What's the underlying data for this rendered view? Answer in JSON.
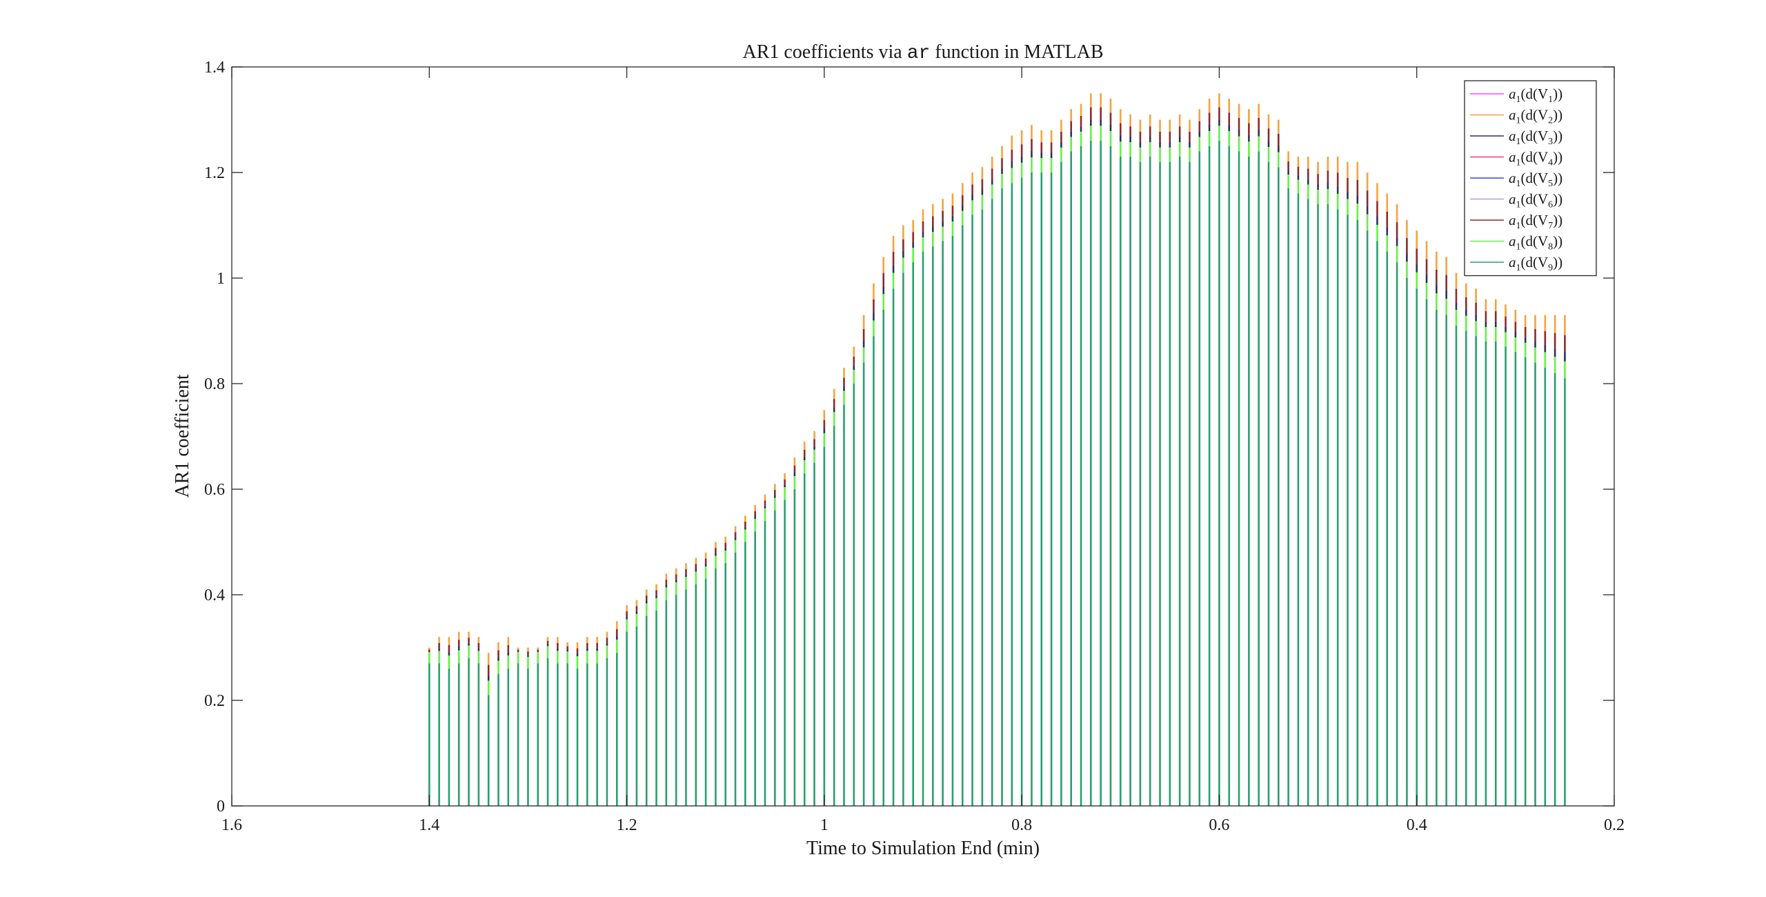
{
  "chart_data": {
    "type": "bar",
    "title": {
      "prefix": "AR1 coefficients via ",
      "code": "ar",
      "suffix": " function in MATLAB"
    },
    "xlabel": "Time to Simulation End (min)",
    "ylabel": "AR1 coefficient",
    "xlim": [
      1.6,
      0.2
    ],
    "x_reversed": true,
    "ylim": [
      0,
      1.4
    ],
    "xticks": [
      "1.6",
      "1.4",
      "1.2",
      "1",
      "0.8",
      "0.6",
      "0.4",
      "0.2"
    ],
    "yticks": [
      "0",
      "0.2",
      "0.4",
      "0.6",
      "0.8",
      "1",
      "1.2",
      "1.4"
    ],
    "grid": false,
    "legend_position": "top-right",
    "series": [
      {
        "name": "a1(d(V1))",
        "label_parts": [
          "a",
          "1",
          "(d(V",
          "1",
          "))"
        ],
        "color": "#ff40ff"
      },
      {
        "name": "a1(d(V2))",
        "label_parts": [
          "a",
          "1",
          "(d(V",
          "2",
          "))"
        ],
        "color": "#f5a33d"
      },
      {
        "name": "a1(d(V3))",
        "label_parts": [
          "a",
          "1",
          "(d(V",
          "3",
          "))"
        ],
        "color": "#30305a"
      },
      {
        "name": "a1(d(V4))",
        "label_parts": [
          "a",
          "1",
          "(d(V",
          "4",
          "))"
        ],
        "color": "#ff3377"
      },
      {
        "name": "a1(d(V5))",
        "label_parts": [
          "a",
          "1",
          "(d(V",
          "5",
          "))"
        ],
        "color": "#3344ee"
      },
      {
        "name": "a1(d(V6))",
        "label_parts": [
          "a",
          "1",
          "(d(V",
          "6",
          "))"
        ],
        "color": "#b49cf0"
      },
      {
        "name": "a1(d(V7))",
        "label_parts": [
          "a",
          "1",
          "(d(V",
          "7",
          "))"
        ],
        "color": "#8c2a2a"
      },
      {
        "name": "a1(d(V8))",
        "label_parts": [
          "a",
          "1",
          "(d(V",
          "8",
          "))"
        ],
        "color": "#66f048"
      },
      {
        "name": "a1(d(V9))",
        "label_parts": [
          "a",
          "1",
          "(d(V",
          "9",
          "))"
        ],
        "color": "#2a9e6e"
      }
    ],
    "x_start": 1.4,
    "x_step": 0.01,
    "envelope_top": [
      0.3,
      0.32,
      0.32,
      0.33,
      0.33,
      0.32,
      0.29,
      0.31,
      0.32,
      0.3,
      0.3,
      0.3,
      0.32,
      0.32,
      0.31,
      0.31,
      0.32,
      0.32,
      0.33,
      0.35,
      0.38,
      0.39,
      0.41,
      0.42,
      0.44,
      0.45,
      0.46,
      0.47,
      0.48,
      0.5,
      0.51,
      0.53,
      0.55,
      0.57,
      0.59,
      0.61,
      0.63,
      0.66,
      0.69,
      0.71,
      0.75,
      0.79,
      0.83,
      0.87,
      0.93,
      0.99,
      1.04,
      1.08,
      1.1,
      1.11,
      1.13,
      1.14,
      1.15,
      1.16,
      1.18,
      1.2,
      1.21,
      1.23,
      1.25,
      1.27,
      1.28,
      1.29,
      1.28,
      1.28,
      1.3,
      1.32,
      1.33,
      1.35,
      1.35,
      1.34,
      1.32,
      1.31,
      1.3,
      1.31,
      1.3,
      1.3,
      1.31,
      1.3,
      1.32,
      1.34,
      1.35,
      1.34,
      1.33,
      1.32,
      1.33,
      1.31,
      1.3,
      1.24,
      1.23,
      1.23,
      1.22,
      1.23,
      1.23,
      1.22,
      1.22,
      1.2,
      1.18,
      1.16,
      1.14,
      1.11,
      1.09,
      1.07,
      1.05,
      1.04,
      1.01,
      0.99,
      0.98,
      0.96,
      0.96,
      0.95,
      0.94,
      0.93,
      0.93,
      0.93,
      0.93,
      0.93
    ],
    "green_top": [
      0.29,
      0.29,
      0.28,
      0.29,
      0.3,
      0.29,
      0.23,
      0.27,
      0.28,
      0.29,
      0.28,
      0.29,
      0.3,
      0.29,
      0.29,
      0.28,
      0.29,
      0.29,
      0.3,
      0.31,
      0.35,
      0.36,
      0.38,
      0.39,
      0.41,
      0.42,
      0.43,
      0.44,
      0.45,
      0.47,
      0.48,
      0.5,
      0.52,
      0.54,
      0.56,
      0.58,
      0.6,
      0.62,
      0.65,
      0.67,
      0.7,
      0.74,
      0.78,
      0.82,
      0.86,
      0.91,
      0.96,
      1.0,
      1.03,
      1.05,
      1.07,
      1.08,
      1.09,
      1.1,
      1.12,
      1.14,
      1.15,
      1.17,
      1.19,
      1.2,
      1.21,
      1.22,
      1.22,
      1.22,
      1.24,
      1.26,
      1.27,
      1.28,
      1.28,
      1.27,
      1.25,
      1.25,
      1.24,
      1.25,
      1.24,
      1.24,
      1.25,
      1.24,
      1.26,
      1.27,
      1.28,
      1.27,
      1.26,
      1.25,
      1.26,
      1.24,
      1.23,
      1.19,
      1.18,
      1.17,
      1.16,
      1.16,
      1.15,
      1.14,
      1.13,
      1.11,
      1.09,
      1.07,
      1.05,
      1.02,
      1.0,
      0.98,
      0.96,
      0.95,
      0.93,
      0.92,
      0.91,
      0.9,
      0.9,
      0.89,
      0.88,
      0.87,
      0.86,
      0.85,
      0.84,
      0.83
    ]
  }
}
